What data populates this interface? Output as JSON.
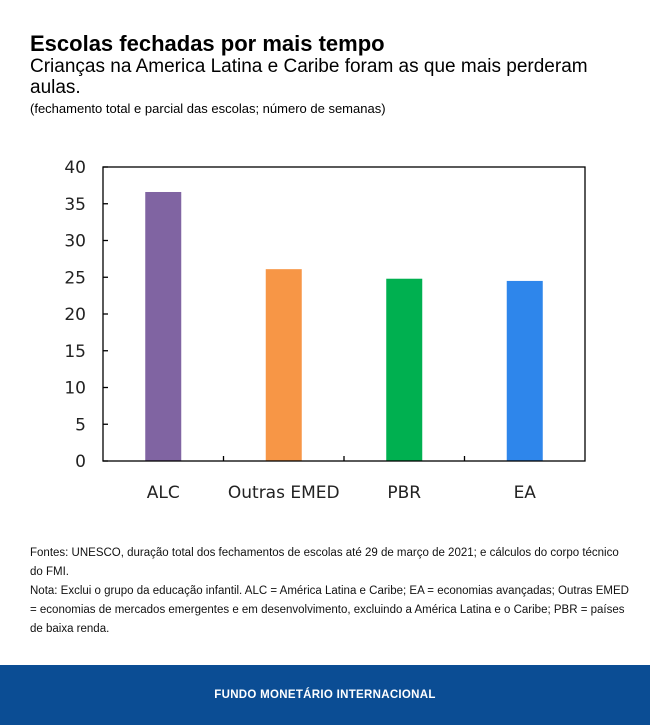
{
  "header": {
    "title": "Escolas fechadas por mais tempo",
    "subtitle": "Crianças na America Latina e Caribe foram as que mais perderam aulas.",
    "unit": "(fechamento total e parcial das escolas; número de semanas)"
  },
  "chart_data": {
    "type": "bar",
    "categories": [
      "ALC",
      "Outras EMED",
      "PBR",
      "EA"
    ],
    "values": [
      36.6,
      26.1,
      24.8,
      24.5
    ],
    "colors": [
      "#8064a2",
      "#f79646",
      "#00b050",
      "#2e86eb"
    ],
    "ylim": [
      0,
      40
    ],
    "yticks": [
      0,
      5,
      10,
      15,
      20,
      25,
      30,
      35,
      40
    ],
    "grid": false
  },
  "notes": {
    "sources": "Fontes: UNESCO, duração total dos fechamentos de escolas até 29 de março de 2021; e cálculos do corpo técnico do FMI.",
    "note": "Nota: Exclui o grupo da educação infantil. ALC = América Latina e Caribe; EA = economias avançadas; Outras EMED = economias de mercados emergentes e em desenvolvimento, excluindo a América Latina e o Caribe; PBR = países de baixa renda."
  },
  "footer": {
    "label": "FUNDO MONETÁRIO INTERNACIONAL"
  }
}
